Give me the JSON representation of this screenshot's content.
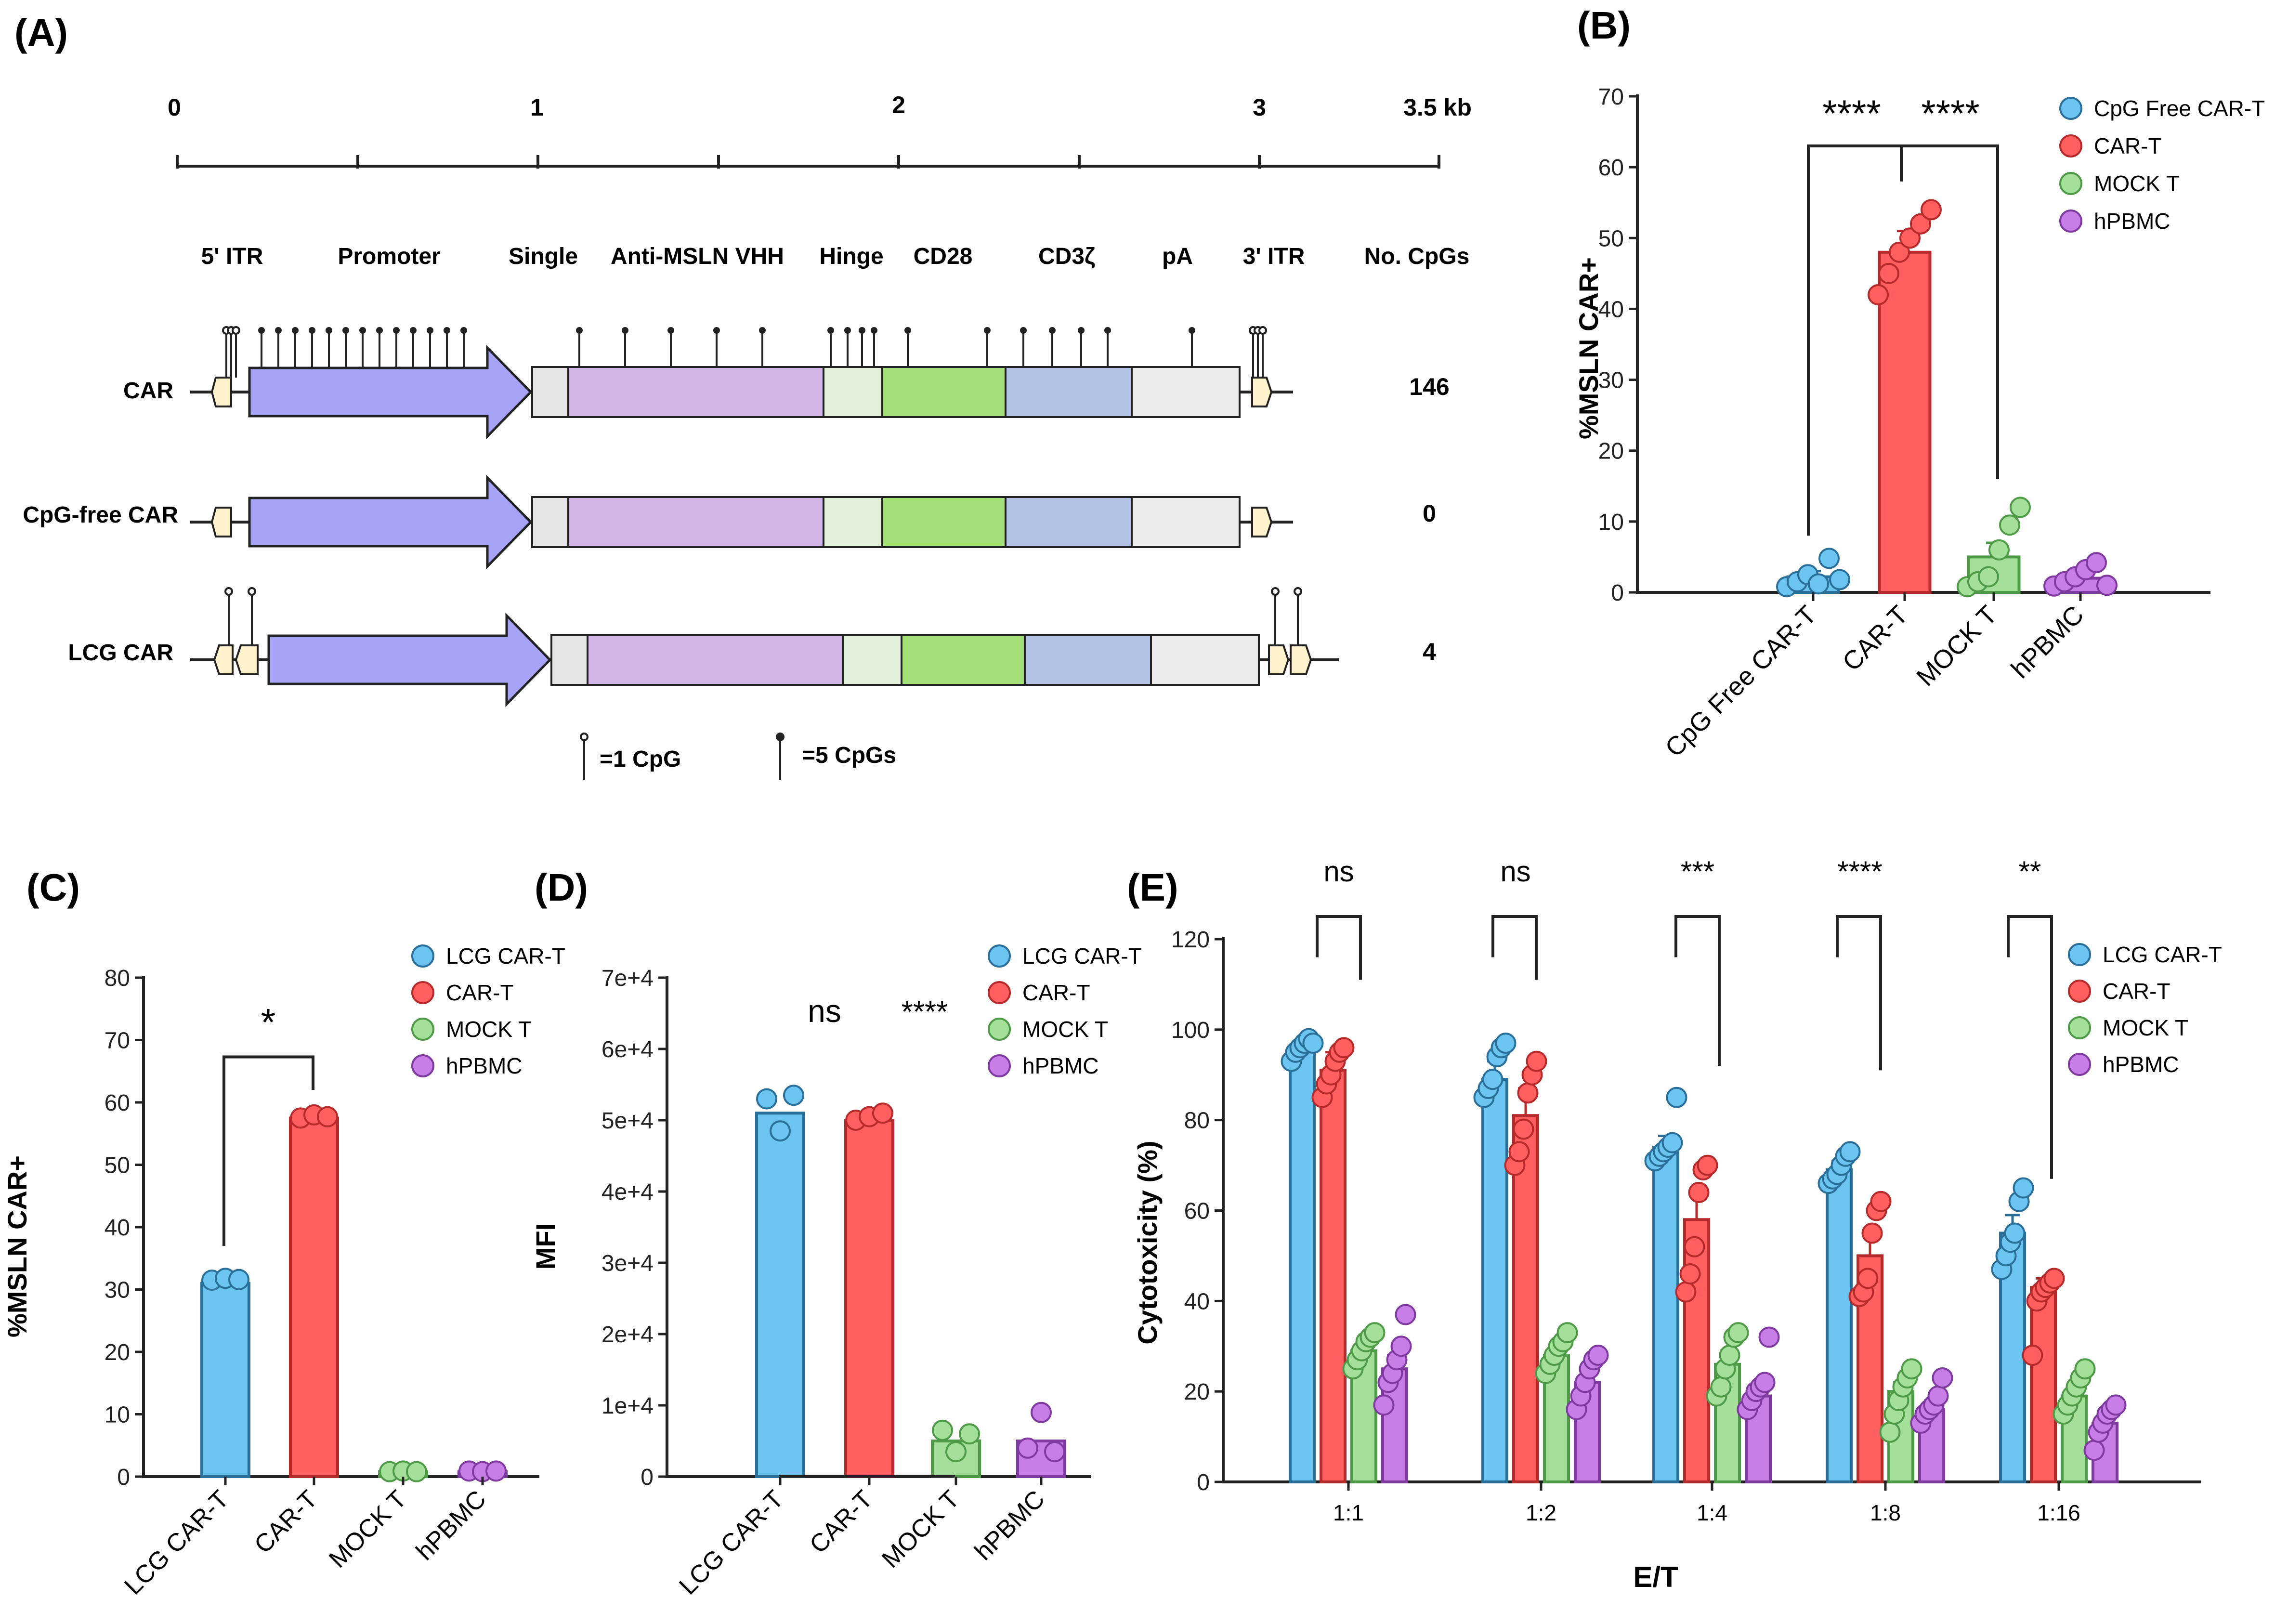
{
  "colors": {
    "lcg": "#6cc4f0",
    "lcg_stroke": "#2a6f99",
    "car": "#ff5f5f",
    "car_stroke": "#b52a2a",
    "mock": "#a4e09a",
    "mock_stroke": "#4e9a47",
    "pbmc": "#c77ee6",
    "pbmc_stroke": "#7f3aa0",
    "arrow": "#a7a4f7",
    "signal": "#e6e6e6",
    "vhh": "#d2b4e6",
    "hinge": "#e2f0d9",
    "cd28": "#a3e07a",
    "cd3z": "#b4c2e6",
    "pa": "#ececec",
    "itr": "#fff2cc"
  },
  "panel_a": {
    "label": "(A)",
    "scale_labels": [
      "0",
      "1",
      "2",
      "3",
      "3.5 kb"
    ],
    "elements": [
      "5' ITR",
      "Promoter",
      "Single",
      "Anti-MSLN VHH",
      "Hinge",
      "CD28",
      "CD3ζ",
      "pA",
      "3' ITR"
    ],
    "cpg_header": "No. CpGs",
    "constructs": [
      {
        "name": "CAR",
        "cpgs": "146"
      },
      {
        "name": "CpG-free CAR",
        "cpgs": "0"
      },
      {
        "name": "LCG CAR",
        "cpgs": "4"
      }
    ],
    "legend": {
      "one": "=1 CpG",
      "five": "=5 CpGs"
    }
  },
  "chart_data": [
    {
      "panel": "(B)",
      "type": "bar",
      "categories": [
        "CpG Free CAR-T",
        "CAR-T",
        "MOCK T",
        "hPBMC"
      ],
      "values": [
        2.2,
        48,
        5,
        2
      ],
      "errors": [
        0.8,
        3,
        2,
        0.5
      ],
      "points": [
        [
          0.8,
          1.5,
          2.5,
          1.2,
          4.8,
          1.8
        ],
        [
          42,
          45,
          48,
          50,
          52,
          54
        ],
        [
          0.8,
          1.5,
          2.2,
          6,
          9.5,
          12
        ],
        [
          0.9,
          1.5,
          2.2,
          3.2,
          4.2,
          1
        ]
      ],
      "ylabel": "%MSLN CAR+",
      "ylim": [
        0,
        70
      ],
      "yticks": [
        "0",
        "10",
        "20",
        "30",
        "40",
        "50",
        "60",
        "70"
      ],
      "legend": [
        "CpG Free CAR-T",
        "CAR-T",
        "MOCK T",
        "hPBMC"
      ],
      "significance": [
        "****",
        "****"
      ]
    },
    {
      "panel": "(C)",
      "type": "bar",
      "categories": [
        "LCG CAR-T",
        "CAR-T",
        "MOCK T",
        "hPBMC"
      ],
      "values": [
        31,
        57.5,
        0.8,
        0.8
      ],
      "points": [
        [
          31.5,
          31.8,
          31.6
        ],
        [
          57.5,
          58,
          57.7
        ],
        [
          0.8,
          0.9,
          0.8
        ],
        [
          0.9,
          0.8,
          0.9
        ]
      ],
      "ylabel": "%MSLN CAR+",
      "ylim": [
        0,
        80
      ],
      "yticks": [
        "0",
        "10",
        "20",
        "30",
        "40",
        "50",
        "60",
        "70",
        "80"
      ],
      "legend": [
        "LCG CAR-T",
        "CAR-T",
        "MOCK T",
        "hPBMC"
      ],
      "significance": [
        "*"
      ]
    },
    {
      "panel": "(D)",
      "type": "bar",
      "categories": [
        "LCG CAR-T",
        "CAR-T",
        "MOCK T",
        "hPBMC"
      ],
      "values": [
        51000,
        50000,
        5000,
        5000
      ],
      "points": [
        [
          53000,
          48500,
          53500
        ],
        [
          50000,
          50500,
          51000
        ],
        [
          6500,
          3500,
          6000
        ],
        [
          4000,
          9000,
          3500
        ]
      ],
      "ylabel": "MFI",
      "ylim": [
        0,
        70000
      ],
      "yticks": [
        "0",
        "1e+4",
        "2e+4",
        "3e+4",
        "4e+4",
        "5e+4",
        "6e+4",
        "7e+4"
      ],
      "legend": [
        "LCG CAR-T",
        "CAR-T",
        "MOCK T",
        "hPBMC"
      ],
      "significance": [
        "ns",
        "****"
      ]
    },
    {
      "panel": "(E)",
      "type": "bar",
      "categories": [
        "1:1",
        "1:2",
        "1:4",
        "1:8",
        "1:16"
      ],
      "series": [
        {
          "name": "LCG CAR-T",
          "values": [
            96,
            89,
            74,
            69,
            55
          ],
          "errors": [
            1.5,
            4,
            2.5,
            2,
            4
          ],
          "points": [
            [
              93,
              95,
              96,
              97,
              98,
              97
            ],
            [
              85,
              87,
              89,
              94,
              96,
              97
            ],
            [
              71,
              72,
              73,
              74,
              75,
              85
            ],
            [
              66,
              67,
              68,
              70,
              72,
              73
            ],
            [
              47,
              50,
              53,
              55,
              62,
              65
            ]
          ]
        },
        {
          "name": "CAR-T",
          "values": [
            91,
            81,
            58,
            50,
            43
          ],
          "errors": [
            4,
            6,
            6,
            5,
            2
          ],
          "points": [
            [
              85,
              88,
              90,
              93,
              95,
              96
            ],
            [
              70,
              73,
              78,
              86,
              90,
              93
            ],
            [
              42,
              46,
              52,
              64,
              69,
              70
            ],
            [
              41,
              42,
              45,
              55,
              60,
              62
            ],
            [
              28,
              40,
              42,
              43,
              44,
              45
            ]
          ]
        },
        {
          "name": "MOCK T",
          "values": [
            29,
            28,
            26,
            20,
            19
          ],
          "errors": [
            2,
            2,
            3,
            2,
            2
          ],
          "points": [
            [
              25,
              27,
              29,
              31,
              32,
              33
            ],
            [
              24,
              26,
              28,
              30,
              31,
              33
            ],
            [
              19,
              21,
              25,
              28,
              32,
              33
            ],
            [
              11,
              15,
              18,
              21,
              23,
              25
            ],
            [
              15,
              17,
              19,
              21,
              23,
              25
            ]
          ]
        },
        {
          "name": "hPBMC",
          "values": [
            25,
            22,
            19,
            16,
            13
          ],
          "errors": [
            3,
            2,
            2,
            2,
            2
          ],
          "points": [
            [
              17,
              22,
              24,
              27,
              30,
              37
            ],
            [
              16,
              19,
              22,
              25,
              27,
              28
            ],
            [
              16,
              18,
              20,
              21,
              22,
              32
            ],
            [
              13,
              15,
              16,
              17,
              19,
              23
            ],
            [
              7,
              11,
              13,
              15,
              16,
              17
            ]
          ]
        }
      ],
      "xlabel": "E/T",
      "ylabel": "Cytotoxicity (%)",
      "ylim": [
        0,
        120
      ],
      "yticks": [
        "0",
        "20",
        "40",
        "60",
        "80",
        "100",
        "120"
      ],
      "legend": [
        "LCG CAR-T",
        "CAR-T",
        "MOCK T",
        "hPBMC"
      ],
      "significance": [
        "ns",
        "ns",
        "***",
        "****",
        "**"
      ]
    }
  ]
}
